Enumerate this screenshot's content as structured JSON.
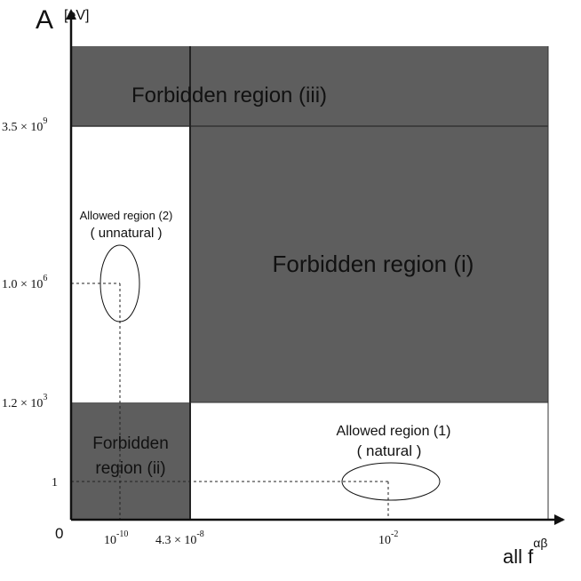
{
  "axes": {
    "y_title": "A",
    "y_unit": "[eV]",
    "x_title": "all f",
    "x_title_sup": "αβ",
    "origin": "0"
  },
  "y_ticks": [
    {
      "base": "3.5 × 10",
      "sup": "9"
    },
    {
      "base": "1.0 × 10",
      "sup": "6"
    },
    {
      "base": "1.2 × 10",
      "sup": "3"
    },
    {
      "base": "1"
    }
  ],
  "x_ticks": [
    {
      "base": "10",
      "sup": "-10"
    },
    {
      "base": "4.3 × 10",
      "sup": "-8"
    },
    {
      "base": "10",
      "sup": "-2"
    }
  ],
  "regions": {
    "forbidden_iii": "Forbidden region (iii)",
    "forbidden_i": "Forbidden region (i)",
    "forbidden_ii": [
      "Forbidden",
      "region (ii)"
    ],
    "allowed_2": [
      "Allowed region (2)",
      "( unnatural )"
    ],
    "allowed_1": [
      "Allowed region (1)",
      "( natural )"
    ]
  }
}
